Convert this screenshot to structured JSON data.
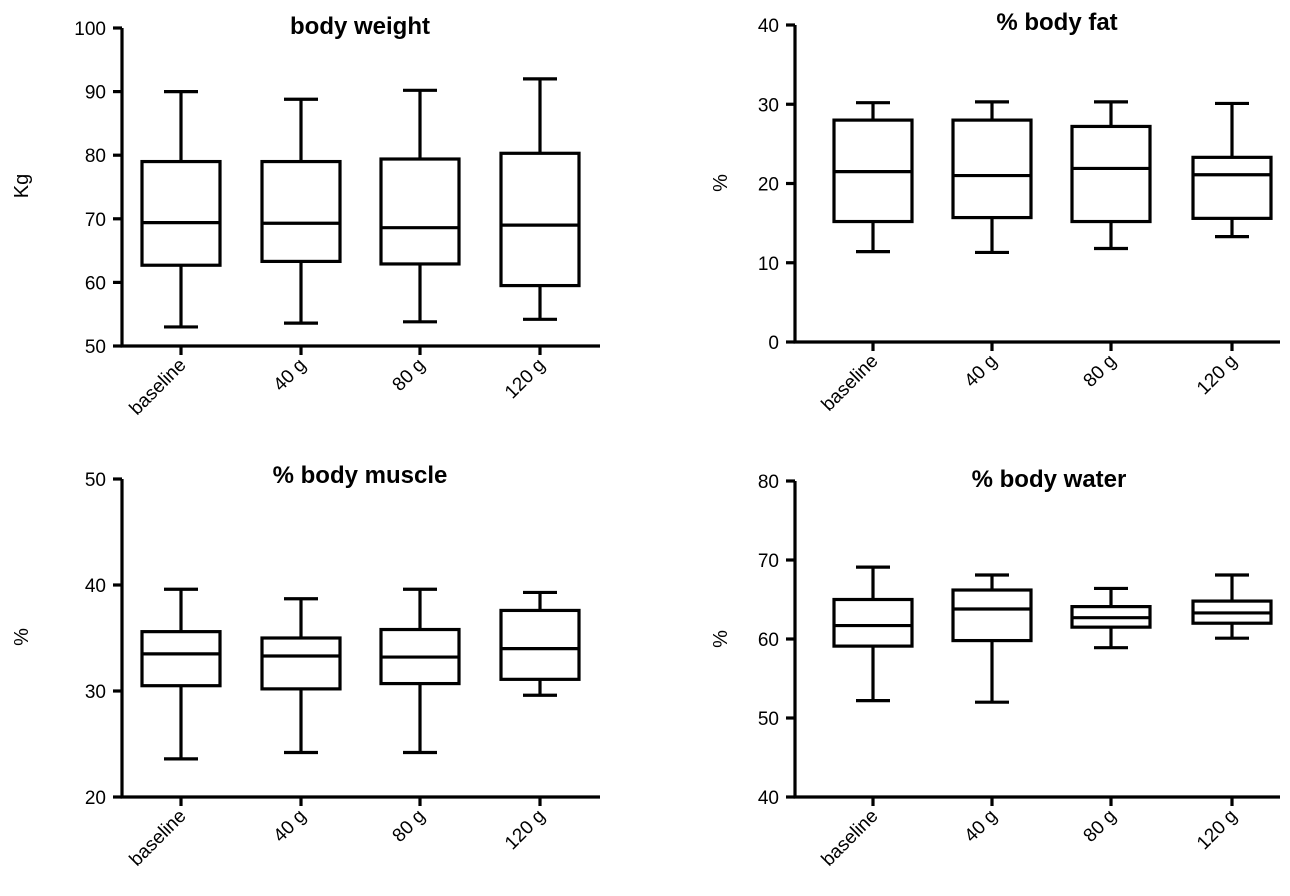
{
  "chart_data": [
    {
      "type": "box",
      "title": "body weight",
      "ylabel": "Kg",
      "ylim": [
        50,
        100
      ],
      "yticks": [
        50,
        60,
        70,
        80,
        90,
        100
      ],
      "categories": [
        "baseline",
        "40 g",
        "80 g",
        "120 g"
      ],
      "boxes": [
        {
          "min": 53,
          "q1": 62.7,
          "median": 69.4,
          "q3": 79,
          "max": 90
        },
        {
          "min": 53.6,
          "q1": 63.3,
          "median": 69.3,
          "q3": 79,
          "max": 88.8
        },
        {
          "min": 53.8,
          "q1": 62.9,
          "median": 68.6,
          "q3": 79.4,
          "max": 90.2
        },
        {
          "min": 54.2,
          "q1": 59.5,
          "median": 69,
          "q3": 80.3,
          "max": 92
        }
      ]
    },
    {
      "type": "box",
      "title": "% body fat",
      "ylabel": "%",
      "ylim": [
        0,
        40
      ],
      "yticks": [
        0,
        10,
        20,
        30,
        40
      ],
      "categories": [
        "baseline",
        "40 g",
        "80 g",
        "120 g"
      ],
      "boxes": [
        {
          "min": 11.4,
          "q1": 15.2,
          "median": 21.5,
          "q3": 28,
          "max": 30.2
        },
        {
          "min": 11.3,
          "q1": 15.7,
          "median": 21,
          "q3": 28,
          "max": 30.3
        },
        {
          "min": 11.8,
          "q1": 15.2,
          "median": 21.9,
          "q3": 27.2,
          "max": 30.3
        },
        {
          "min": 13.3,
          "q1": 15.6,
          "median": 21.1,
          "q3": 23.3,
          "max": 30.1
        }
      ]
    },
    {
      "type": "box",
      "title": "% body muscle",
      "ylabel": "%",
      "ylim": [
        20,
        50
      ],
      "yticks": [
        20,
        30,
        40,
        50
      ],
      "categories": [
        "baseline",
        "40 g",
        "80 g",
        "120 g"
      ],
      "boxes": [
        {
          "min": 23.6,
          "q1": 30.5,
          "median": 33.5,
          "q3": 35.6,
          "max": 39.6
        },
        {
          "min": 24.2,
          "q1": 30.2,
          "median": 33.3,
          "q3": 35,
          "max": 38.7
        },
        {
          "min": 24.2,
          "q1": 30.7,
          "median": 33.2,
          "q3": 35.8,
          "max": 39.6
        },
        {
          "min": 29.6,
          "q1": 31.1,
          "median": 34,
          "q3": 37.6,
          "max": 39.3
        }
      ]
    },
    {
      "type": "box",
      "title": "% body water",
      "ylabel": "%",
      "ylim": [
        40,
        80
      ],
      "yticks": [
        40,
        50,
        60,
        70,
        80
      ],
      "categories": [
        "baseline",
        "40 g",
        "80 g",
        "120 g"
      ],
      "boxes": [
        {
          "min": 52.2,
          "q1": 59.1,
          "median": 61.7,
          "q3": 65,
          "max": 69.1
        },
        {
          "min": 52,
          "q1": 59.8,
          "median": 63.8,
          "q3": 66.2,
          "max": 68.1
        },
        {
          "min": 58.9,
          "q1": 61.5,
          "median": 62.7,
          "q3": 64.1,
          "max": 66.4
        },
        {
          "min": 60.1,
          "q1": 62,
          "median": 63.3,
          "q3": 64.8,
          "max": 68.1
        }
      ]
    }
  ]
}
